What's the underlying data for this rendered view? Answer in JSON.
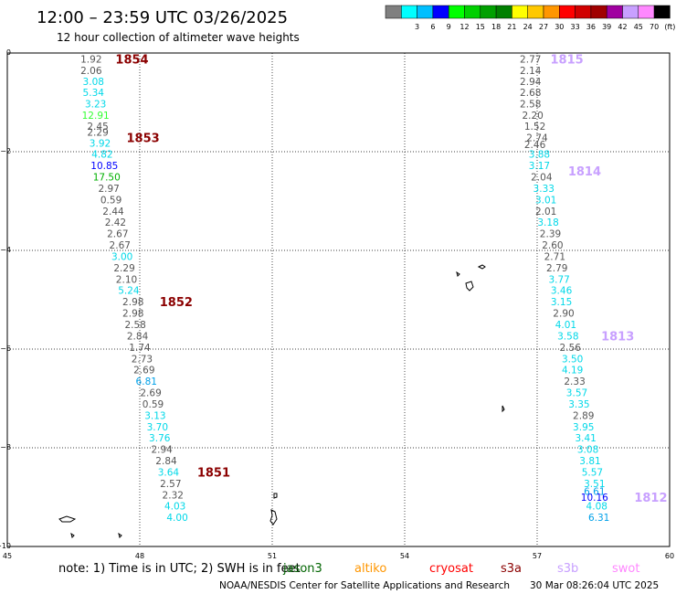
{
  "header": {
    "title": "12:00 – 23:59 UTC 03/26/2025",
    "subtitle": "12 hour collection of altimeter wave heights"
  },
  "legend": {
    "swatches": [
      {
        "color": "#7f7f7f",
        "label": ""
      },
      {
        "color": "#00ffff",
        "label": "3"
      },
      {
        "color": "#00bfff",
        "label": "6"
      },
      {
        "color": "#0000ff",
        "label": "9"
      },
      {
        "color": "#00ff00",
        "label": "12"
      },
      {
        "color": "#00d000",
        "label": "15"
      },
      {
        "color": "#00a000",
        "label": "18"
      },
      {
        "color": "#007f00",
        "label": "21"
      },
      {
        "color": "#ffff00",
        "label": "24"
      },
      {
        "color": "#ffc800",
        "label": "27"
      },
      {
        "color": "#ff9600",
        "label": "30"
      },
      {
        "color": "#ff0000",
        "label": "33"
      },
      {
        "color": "#d00000",
        "label": "36"
      },
      {
        "color": "#a00000",
        "label": "39"
      },
      {
        "color": "#a000a0",
        "label": "42"
      },
      {
        "color": "#c8a0ff",
        "label": "45"
      },
      {
        "color": "#ff88ff",
        "label": "70"
      },
      {
        "color": "#000000",
        "label": "(ft)"
      }
    ]
  },
  "chart_data": {
    "type": "scatter",
    "title": "12:00 – 23:59 UTC 03/26/2025",
    "subtitle": "12 hour collection of altimeter wave heights",
    "xlabel": "",
    "ylabel": "",
    "xlim": [
      45,
      60
    ],
    "ylim": [
      -10,
      0
    ],
    "x_ticks": [
      {
        "value": 45,
        "label": "45"
      },
      {
        "value": 48,
        "label": "48"
      },
      {
        "value": 51,
        "label": "51"
      },
      {
        "value": 54,
        "label": "54"
      },
      {
        "value": 57,
        "label": "57"
      },
      {
        "value": 60,
        "label": "60"
      }
    ],
    "y_ticks": [
      {
        "value": 0,
        "label": "0"
      },
      {
        "value": -2,
        "label": "−2"
      },
      {
        "value": -4,
        "label": "−4"
      },
      {
        "value": -6,
        "label": "−6"
      },
      {
        "value": -8,
        "label": "−8"
      },
      {
        "value": -10,
        "label": "−10"
      }
    ],
    "grid": "dotted",
    "tracks": [
      {
        "name": "west-track",
        "points": [
          {
            "lon": 46.9,
            "lat": -0.12,
            "v": "1.92"
          },
          {
            "lon": 46.9,
            "lat": -0.35,
            "v": "2.06"
          },
          {
            "lon": 46.95,
            "lat": -0.57,
            "v": "3.08"
          },
          {
            "lon": 46.95,
            "lat": -0.8,
            "v": "5.34"
          },
          {
            "lon": 47.0,
            "lat": -1.03,
            "v": "3.23"
          },
          {
            "lon": 47.0,
            "lat": -1.26,
            "v": "12.91"
          },
          {
            "lon": 47.05,
            "lat": -1.48,
            "v": "2.45"
          },
          {
            "lon": 47.05,
            "lat": -1.6,
            "v": "2.29"
          },
          {
            "lon": 47.1,
            "lat": -1.82,
            "v": "3.92"
          },
          {
            "lon": 47.15,
            "lat": -2.05,
            "v": "4.82"
          },
          {
            "lon": 47.2,
            "lat": -2.28,
            "v": "10.85"
          },
          {
            "lon": 47.25,
            "lat": -2.51,
            "v": "17.50"
          },
          {
            "lon": 47.3,
            "lat": -2.74,
            "v": "2.97"
          },
          {
            "lon": 47.35,
            "lat": -2.97,
            "v": "0.59"
          },
          {
            "lon": 47.4,
            "lat": -3.2,
            "v": "2.44"
          },
          {
            "lon": 47.45,
            "lat": -3.43,
            "v": "2.42"
          },
          {
            "lon": 47.5,
            "lat": -3.66,
            "v": "2.67"
          },
          {
            "lon": 47.55,
            "lat": -3.89,
            "v": "2.67"
          },
          {
            "lon": 47.6,
            "lat": -4.12,
            "v": "3.00"
          },
          {
            "lon": 47.65,
            "lat": -4.35,
            "v": "2.29"
          },
          {
            "lon": 47.7,
            "lat": -4.58,
            "v": "2.10"
          },
          {
            "lon": 47.75,
            "lat": -4.81,
            "v": "5.24"
          },
          {
            "lon": 47.85,
            "lat": -5.04,
            "v": "2.98"
          },
          {
            "lon": 47.85,
            "lat": -5.27,
            "v": "2.98"
          },
          {
            "lon": 47.9,
            "lat": -5.5,
            "v": "2.58"
          },
          {
            "lon": 47.95,
            "lat": -5.73,
            "v": "2.84"
          },
          {
            "lon": 48.0,
            "lat": -5.96,
            "v": "1.74"
          },
          {
            "lon": 48.05,
            "lat": -6.19,
            "v": "2.73"
          },
          {
            "lon": 48.1,
            "lat": -6.42,
            "v": "2.69"
          },
          {
            "lon": 48.15,
            "lat": -6.65,
            "v": "6.81"
          },
          {
            "lon": 48.25,
            "lat": -6.88,
            "v": "2.69"
          },
          {
            "lon": 48.3,
            "lat": -7.11,
            "v": "0.59"
          },
          {
            "lon": 48.35,
            "lat": -7.34,
            "v": "3.13"
          },
          {
            "lon": 48.4,
            "lat": -7.57,
            "v": "3.70"
          },
          {
            "lon": 48.45,
            "lat": -7.8,
            "v": "3.76"
          },
          {
            "lon": 48.5,
            "lat": -8.03,
            "v": "2.94"
          },
          {
            "lon": 48.6,
            "lat": -8.26,
            "v": "2.84"
          },
          {
            "lon": 48.65,
            "lat": -8.49,
            "v": "3.64"
          },
          {
            "lon": 48.7,
            "lat": -8.72,
            "v": "2.57"
          },
          {
            "lon": 48.75,
            "lat": -8.95,
            "v": "2.32"
          },
          {
            "lon": 48.8,
            "lat": -9.18,
            "v": "4.03"
          },
          {
            "lon": 48.85,
            "lat": -9.41,
            "v": "4.00"
          }
        ]
      },
      {
        "name": "east-track",
        "points": [
          {
            "lon": 56.85,
            "lat": -0.12,
            "v": "2.77"
          },
          {
            "lon": 56.85,
            "lat": -0.35,
            "v": "2.14"
          },
          {
            "lon": 56.85,
            "lat": -0.57,
            "v": "2.94"
          },
          {
            "lon": 56.85,
            "lat": -0.8,
            "v": "2.68"
          },
          {
            "lon": 56.85,
            "lat": -1.03,
            "v": "2.58"
          },
          {
            "lon": 56.9,
            "lat": -1.26,
            "v": "2.20"
          },
          {
            "lon": 56.95,
            "lat": -1.48,
            "v": "1.52"
          },
          {
            "lon": 57.0,
            "lat": -1.71,
            "v": "2.74"
          },
          {
            "lon": 56.95,
            "lat": -1.85,
            "v": "2.46"
          },
          {
            "lon": 57.05,
            "lat": -2.05,
            "v": "3.88"
          },
          {
            "lon": 57.05,
            "lat": -2.28,
            "v": "3.17"
          },
          {
            "lon": 57.1,
            "lat": -2.51,
            "v": "2.04"
          },
          {
            "lon": 57.15,
            "lat": -2.74,
            "v": "3.33"
          },
          {
            "lon": 57.2,
            "lat": -2.97,
            "v": "3.01"
          },
          {
            "lon": 57.2,
            "lat": -3.2,
            "v": "2.01"
          },
          {
            "lon": 57.25,
            "lat": -3.43,
            "v": "3.18"
          },
          {
            "lon": 57.3,
            "lat": -3.66,
            "v": "2.39"
          },
          {
            "lon": 57.35,
            "lat": -3.89,
            "v": "2.60"
          },
          {
            "lon": 57.4,
            "lat": -4.12,
            "v": "2.71"
          },
          {
            "lon": 57.45,
            "lat": -4.35,
            "v": "2.79"
          },
          {
            "lon": 57.5,
            "lat": -4.58,
            "v": "3.77"
          },
          {
            "lon": 57.55,
            "lat": -4.81,
            "v": "3.46"
          },
          {
            "lon": 57.55,
            "lat": -5.04,
            "v": "3.15"
          },
          {
            "lon": 57.6,
            "lat": -5.27,
            "v": "2.90"
          },
          {
            "lon": 57.65,
            "lat": -5.5,
            "v": "4.01"
          },
          {
            "lon": 57.7,
            "lat": -5.73,
            "v": "3.58"
          },
          {
            "lon": 57.75,
            "lat": -5.96,
            "v": "2.56"
          },
          {
            "lon": 57.8,
            "lat": -6.19,
            "v": "3.50"
          },
          {
            "lon": 57.8,
            "lat": -6.42,
            "v": "4.19"
          },
          {
            "lon": 57.85,
            "lat": -6.65,
            "v": "2.33"
          },
          {
            "lon": 57.9,
            "lat": -6.88,
            "v": "3.57"
          },
          {
            "lon": 57.95,
            "lat": -7.11,
            "v": "3.35"
          },
          {
            "lon": 58.05,
            "lat": -7.34,
            "v": "2.89"
          },
          {
            "lon": 58.05,
            "lat": -7.57,
            "v": "3.95"
          },
          {
            "lon": 58.1,
            "lat": -7.8,
            "v": "3.41"
          },
          {
            "lon": 58.15,
            "lat": -8.03,
            "v": "3.08"
          },
          {
            "lon": 58.2,
            "lat": -8.26,
            "v": "3.81"
          },
          {
            "lon": 58.25,
            "lat": -8.49,
            "v": "5.57"
          },
          {
            "lon": 58.3,
            "lat": -8.72,
            "v": "3.51"
          },
          {
            "lon": 58.3,
            "lat": -8.88,
            "v": "6.61"
          },
          {
            "lon": 58.3,
            "lat": -9.0,
            "v": "10.16"
          },
          {
            "lon": 58.35,
            "lat": -9.18,
            "v": "4.08"
          },
          {
            "lon": 58.4,
            "lat": -9.41,
            "v": "6.31"
          }
        ]
      }
    ],
    "pass_labels": [
      {
        "text": "1854",
        "lon": 47.45,
        "lat": -0.12,
        "color": "#8b0000"
      },
      {
        "text": "1853",
        "lon": 47.7,
        "lat": -1.71,
        "color": "#8b0000"
      },
      {
        "text": "1852",
        "lon": 48.45,
        "lat": -5.04,
        "color": "#8b0000"
      },
      {
        "text": "1851",
        "lon": 49.3,
        "lat": -8.49,
        "color": "#8b0000"
      },
      {
        "text": "1815",
        "lon": 57.3,
        "lat": -0.12,
        "color": "#c8a0ff"
      },
      {
        "text": "1814",
        "lon": 57.7,
        "lat": -2.39,
        "color": "#c8a0ff"
      },
      {
        "text": "1813",
        "lon": 58.45,
        "lat": -5.73,
        "color": "#c8a0ff"
      },
      {
        "text": "1812",
        "lon": 59.2,
        "lat": -9.0,
        "color": "#c8a0ff"
      }
    ]
  },
  "footer": {
    "note": "note:  1) Time is in UTC;  2) SWH is in feet",
    "satellites": [
      {
        "name": "jason3",
        "color": "#006400"
      },
      {
        "name": "altiko",
        "color": "#ff9600"
      },
      {
        "name": "cryosat",
        "color": "#ff0000"
      },
      {
        "name": "s3a",
        "color": "#8b0000"
      },
      {
        "name": "s3b",
        "color": "#c8a0ff"
      },
      {
        "name": "swot",
        "color": "#ff88ff"
      }
    ],
    "credit": "NOAA/NESDIS Center for Satellite Applications and Research",
    "timestamp": "30 Mar 08:26:04 UTC 2025"
  }
}
